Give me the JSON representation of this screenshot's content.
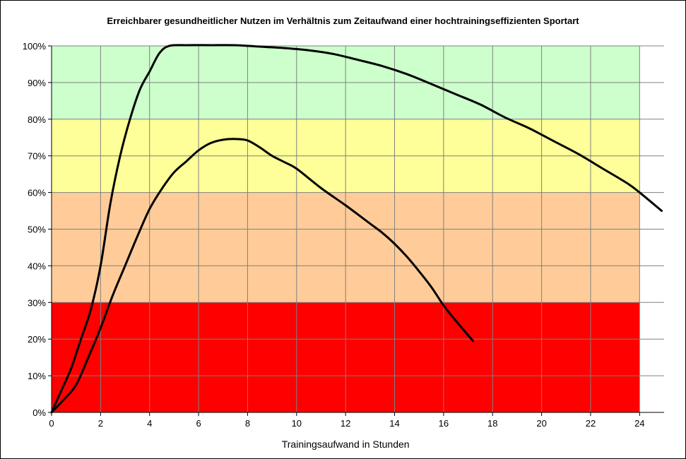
{
  "chart_data": {
    "type": "line",
    "title": "Erreichbarer gesundheitlicher Nutzen im Verhältnis zum Zeitaufwand einer hochtrainingseffizienten Sportart",
    "xlabel": "Trainingsaufwand in Stunden",
    "ylabel": "",
    "xlim": [
      0,
      25
    ],
    "ylim": [
      0,
      100
    ],
    "x_ticks": [
      0,
      2,
      4,
      6,
      8,
      10,
      12,
      14,
      16,
      18,
      20,
      22,
      24
    ],
    "y_ticks": [
      "0%",
      "10%",
      "20%",
      "30%",
      "40%",
      "50%",
      "60%",
      "70%",
      "80%",
      "90%",
      "100%"
    ],
    "grid": true,
    "background_bands": [
      {
        "from": 0,
        "to": 30,
        "color": "#ff0000"
      },
      {
        "from": 30,
        "to": 60,
        "color": "#ffcc99"
      },
      {
        "from": 60,
        "to": 80,
        "color": "#ffff99"
      },
      {
        "from": 80,
        "to": 100,
        "color": "#ccffcc"
      }
    ],
    "bands_x_end": 24,
    "series": [
      {
        "color": "#000000",
        "x": [
          0,
          0.4,
          0.8,
          1.2,
          1.6,
          2.0,
          2.4,
          2.8,
          3.2,
          3.6,
          4.0,
          4.4,
          4.8,
          5.5,
          6.5,
          7.5,
          8.5,
          9.5,
          10.5,
          11.5,
          12.5,
          13.5,
          14.5,
          15.5,
          16.5,
          17.5,
          18.5,
          19.5,
          20.5,
          21.5,
          22.5,
          23.5,
          24.0,
          24.9
        ],
        "y": [
          0,
          6,
          12,
          20,
          28,
          40,
          57,
          70,
          80,
          88,
          93,
          98,
          100,
          100.2,
          100.2,
          100.2,
          99.8,
          99.4,
          98.8,
          97.8,
          96.2,
          94.5,
          92.3,
          89.6,
          86.8,
          84,
          80.5,
          77.5,
          74,
          70.5,
          66.5,
          62.5,
          60,
          55
        ]
      },
      {
        "color": "#000000",
        "x": [
          0,
          0.5,
          1.0,
          1.5,
          2.0,
          2.5,
          3.0,
          3.5,
          4.0,
          4.5,
          5.0,
          5.5,
          6.0,
          6.5,
          7.0,
          7.5,
          8.0,
          8.5,
          9.0,
          9.5,
          10.0,
          11.0,
          12.0,
          13.0,
          13.5,
          14.0,
          14.5,
          15.0,
          15.5,
          16.0,
          16.5,
          17.2
        ],
        "y": [
          0,
          3.5,
          7.5,
          15,
          23,
          32,
          40,
          48,
          55.5,
          61,
          65.5,
          68.5,
          71.5,
          73.5,
          74.4,
          74.6,
          74.2,
          72.3,
          70,
          68.3,
          66.5,
          61.2,
          56.5,
          51.5,
          49,
          46,
          42.5,
          38.5,
          34.2,
          29.2,
          25,
          19.5
        ]
      }
    ]
  }
}
